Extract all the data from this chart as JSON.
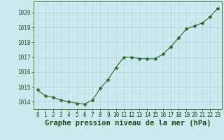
{
  "x": [
    0,
    1,
    2,
    3,
    4,
    5,
    6,
    7,
    8,
    9,
    10,
    11,
    12,
    13,
    14,
    15,
    16,
    17,
    18,
    19,
    20,
    21,
    22,
    23
  ],
  "y": [
    1014.8,
    1014.4,
    1014.3,
    1014.1,
    1014.0,
    1013.9,
    1013.85,
    1014.1,
    1014.9,
    1015.5,
    1016.3,
    1017.0,
    1017.0,
    1016.9,
    1016.9,
    1016.9,
    1017.2,
    1017.7,
    1018.3,
    1018.9,
    1019.1,
    1019.3,
    1019.7,
    1020.3
  ],
  "line_color": "#2d6a2d",
  "marker": "*",
  "marker_size": 3,
  "bg_color": "#cce9f0",
  "grid_color_major": "#aaccd4",
  "grid_color_minor": "#bddbe3",
  "xlabel": "Graphe pression niveau de la mer (hPa)",
  "xlabel_color": "#1a4d1a",
  "xlabel_fontsize": 7.5,
  "ylabel_ticks": [
    1014,
    1015,
    1016,
    1017,
    1018,
    1019,
    1020
  ],
  "ylim": [
    1013.5,
    1020.75
  ],
  "xlim": [
    -0.5,
    23.5
  ],
  "tick_fontsize": 5.5,
  "tick_color": "#1a4d1a",
  "spine_color": "#2d6a2d"
}
